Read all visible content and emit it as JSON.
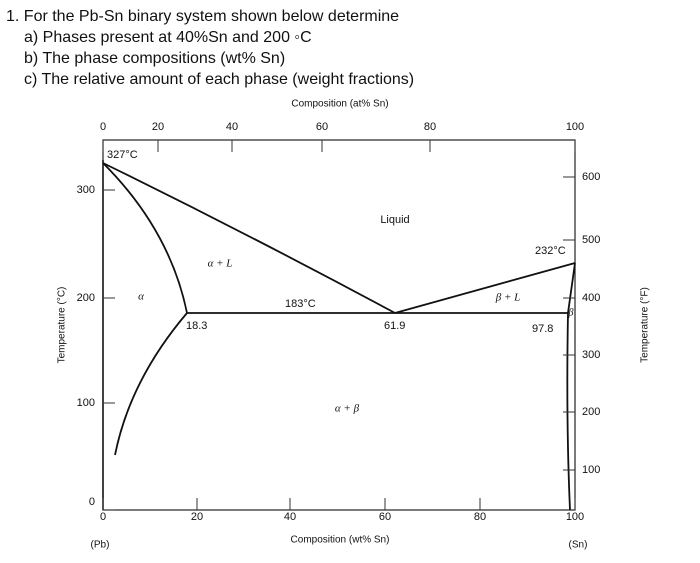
{
  "question": {
    "lines": [
      "1.  For the Pb-Sn binary system shown below determine",
      "a) Phases present at 40%Sn and 200 ◦C",
      "b) The phase compositions (wt% Sn)",
      "c) The relative amount of each phase (weight fractions)"
    ]
  },
  "diagram": {
    "top_axis_title": "Composition (at% Sn)",
    "top_ticks": [
      0,
      20,
      40,
      60,
      80,
      100
    ],
    "bottom_axis_title": "Composition (wt% Sn)",
    "bottom_ticks": [
      0,
      20,
      40,
      60,
      80,
      100
    ],
    "left_axis_title": "Temperature (°C)",
    "left_ticks": [
      0,
      100,
      200,
      300
    ],
    "right_axis_title": "Temperature (°F)",
    "right_ticks": [
      100,
      200,
      300,
      400,
      500,
      600
    ],
    "end_labels": [
      "(Pb)",
      "(Sn)"
    ],
    "annotations": [
      "327°C",
      "183°C",
      "232°C",
      "18.3",
      "61.9",
      "97.8"
    ],
    "regions": [
      "Liquid",
      "α + L",
      "α",
      "α + β",
      "β + L",
      "β"
    ]
  }
}
